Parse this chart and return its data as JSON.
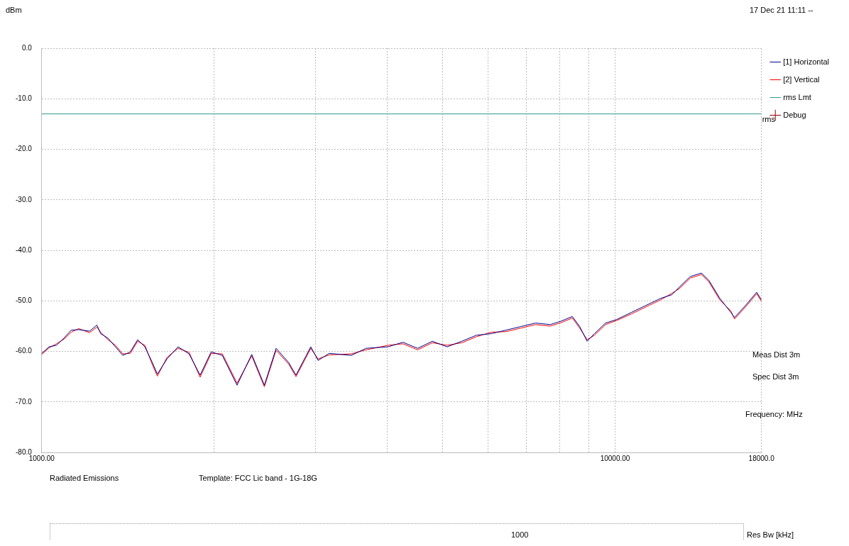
{
  "chart_data": {
    "type": "line",
    "ylabel": "dBm",
    "xlabel": "Frequency: MHz",
    "log": "x",
    "xlim": [
      1000,
      18000
    ],
    "xticks": [
      {
        "value": 1000,
        "label": "1000.00"
      },
      {
        "value": 2000,
        "label": null
      },
      {
        "value": 3000,
        "label": null
      },
      {
        "value": 4000,
        "label": null
      },
      {
        "value": 5000,
        "label": null
      },
      {
        "value": 6000,
        "label": null
      },
      {
        "value": 7000,
        "label": null
      },
      {
        "value": 8000,
        "label": null
      },
      {
        "value": 9000,
        "label": null
      },
      {
        "value": 10000,
        "label": "10000.00"
      },
      {
        "value": 18000,
        "label": "18000.0"
      }
    ],
    "ylim": [
      -80,
      0
    ],
    "yticks": [
      {
        "value": 0,
        "label": "0.0"
      },
      {
        "value": -10,
        "label": "-10.0"
      },
      {
        "value": -20,
        "label": "-20.0"
      },
      {
        "value": -30,
        "label": "-30.0"
      },
      {
        "value": -40,
        "label": "-40.0"
      },
      {
        "value": -50,
        "label": "-50.0"
      },
      {
        "value": -60,
        "label": "-60.0"
      },
      {
        "value": -70,
        "label": "-70.0"
      },
      {
        "value": -80,
        "label": "-80.0"
      }
    ],
    "grid": true,
    "legend": "top right",
    "marker": "none",
    "line_style": "solid",
    "x": [
      1000,
      1030,
      1061,
      1093,
      1126,
      1160,
      1212,
      1248,
      1267,
      1305,
      1344,
      1385,
      1427,
      1470,
      1513,
      1559,
      1591,
      1654,
      1729,
      1807,
      1889,
      1975,
      2065,
      2191,
      2324,
      2445,
      2563,
      2695,
      2776,
      2946,
      3034,
      3172,
      3467,
      3678,
      4019,
      4265,
      4525,
      4801,
      5093,
      5404,
      5733,
      6083,
      6454,
      6847,
      7264,
      7707,
      8058,
      8423,
      8675,
      8938,
      9204,
      9623,
      10060,
      10673,
      11324,
      12014,
      12561,
      12939,
      13526,
      14140,
      14565,
      15226,
      15918,
      16155,
      16888,
      17655,
      18000
    ],
    "series": [
      {
        "name": "[1] Horizontal",
        "color": "#00008b",
        "values": [
          -60.4,
          -59.1,
          -58.8,
          -57.4,
          -55.8,
          -55.7,
          -56.0,
          -54.8,
          -56.5,
          -57.4,
          -59.1,
          -60.8,
          -60.1,
          -57.7,
          -59.1,
          -62.2,
          -64.5,
          -61.5,
          -59.1,
          -60.5,
          -64.7,
          -60.1,
          -60.8,
          -66.7,
          -60.6,
          -66.7,
          -59.4,
          -62.2,
          -64.7,
          -59.1,
          -61.8,
          -60.4,
          -60.8,
          -59.4,
          -59.1,
          -58.2,
          -59.4,
          -58.0,
          -59.1,
          -58.0,
          -56.8,
          -56.5,
          -55.8,
          -55.1,
          -54.4,
          -54.7,
          -54.0,
          -53.1,
          -55.1,
          -58.0,
          -56.5,
          -54.4,
          -53.7,
          -52.3,
          -50.9,
          -49.5,
          -48.8,
          -47.3,
          -45.2,
          -44.5,
          -45.9,
          -49.5,
          -52.3,
          -53.3,
          -50.9,
          -48.3,
          -49.8
        ]
      },
      {
        "name": "[2] Vertical",
        "color": "#ff0000",
        "values": [
          -60.6,
          -59.3,
          -58.5,
          -57.6,
          -56.2,
          -55.5,
          -56.3,
          -55.2,
          -56.2,
          -57.7,
          -58.8,
          -60.5,
          -60.4,
          -58.0,
          -58.8,
          -62.6,
          -64.9,
          -61.2,
          -59.4,
          -60.2,
          -65.1,
          -60.4,
          -60.5,
          -66.3,
          -60.9,
          -67.0,
          -59.8,
          -62.5,
          -65.0,
          -59.4,
          -61.5,
          -60.7,
          -60.5,
          -59.7,
          -58.8,
          -58.5,
          -59.7,
          -58.3,
          -58.8,
          -58.3,
          -57.1,
          -56.2,
          -56.1,
          -55.4,
          -54.7,
          -55.0,
          -54.3,
          -53.4,
          -55.4,
          -57.7,
          -56.8,
          -54.7,
          -53.9,
          -52.6,
          -51.2,
          -49.8,
          -48.5,
          -47.6,
          -45.5,
          -44.8,
          -46.2,
          -49.8,
          -52.0,
          -53.6,
          -51.2,
          -48.6,
          -50.1
        ]
      },
      {
        "name": "rms Lmt",
        "color": "#2e9a8e",
        "x": [
          1000,
          18000
        ],
        "values": [
          -13,
          -13
        ]
      },
      {
        "name": "Debug",
        "marker": "cross",
        "color": "#8b0000",
        "values": [
          null,
          null,
          null,
          null,
          null,
          null,
          null,
          null,
          null,
          null,
          null,
          null,
          null,
          null,
          null,
          null,
          null,
          null,
          null,
          null,
          null,
          null,
          null,
          null,
          null,
          null,
          null,
          null,
          null,
          null,
          null,
          null,
          null,
          null,
          null,
          null,
          null,
          null,
          null,
          null,
          null,
          null,
          null,
          null,
          null,
          null,
          null,
          null,
          null,
          null,
          null,
          null,
          null,
          null,
          null,
          null,
          null,
          null,
          null,
          null,
          null,
          null,
          null,
          null,
          null,
          null,
          null
        ]
      }
    ],
    "annotations": [
      {
        "text": "rms",
        "x": 18000,
        "y": -13
      },
      "17 Dec 21 11:11 --",
      "Meas Dist 3m",
      "Spec Dist 3m",
      "Radiated Emissions",
      "Template: FCC Lic band - 1G-18G",
      "1000",
      "Res Bw [kHz]"
    ]
  }
}
